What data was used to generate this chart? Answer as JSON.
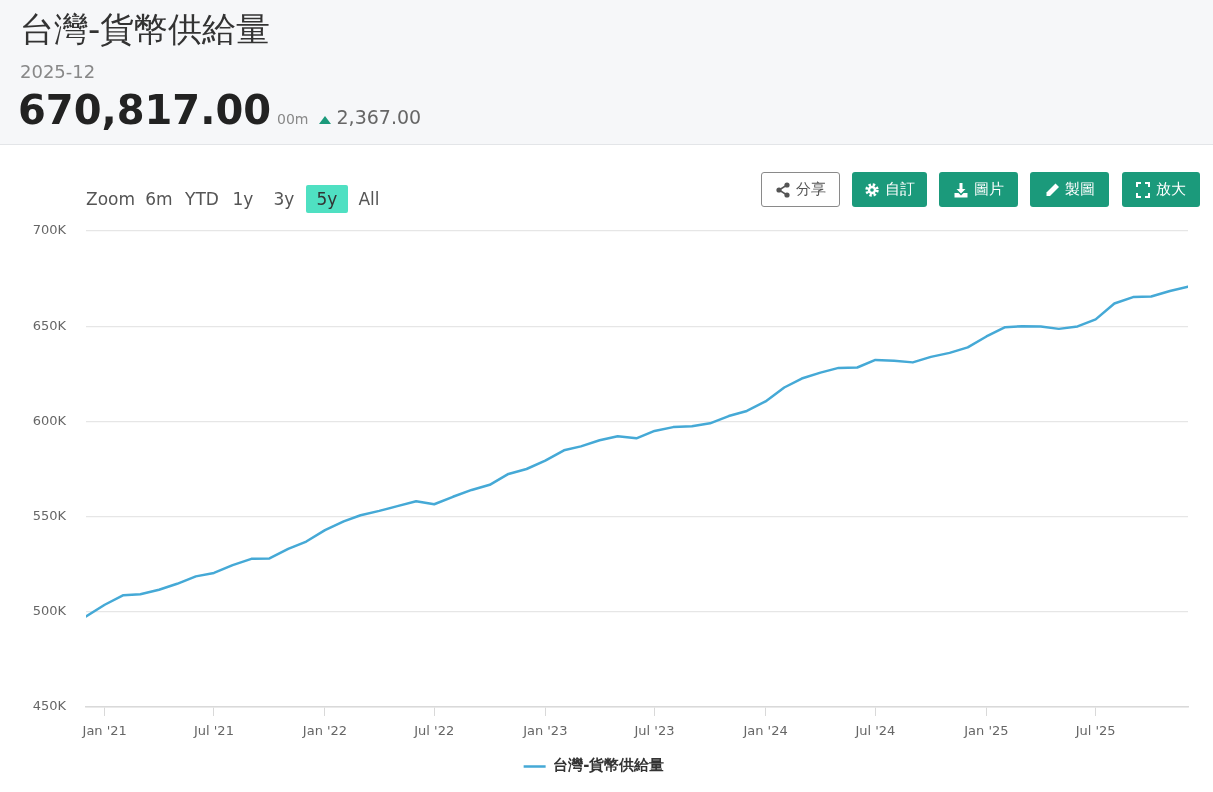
{
  "chart_data": {
    "type": "line",
    "title": "台灣-貨幣供給量",
    "subtitle": "2025-12",
    "annotations": [
      "670,817.00",
      "00m",
      "2,367.00",
      "Zoom",
      "6m",
      "YTD",
      "1y",
      "3y",
      "5y",
      "All",
      "分享",
      "自訂",
      "圖片",
      "製圖",
      "放大"
    ],
    "x": [
      "2020-12",
      "2021-01",
      "2021-02",
      "2021-03",
      "2021-04",
      "2021-05",
      "2021-06",
      "2021-07",
      "2021-08",
      "2021-09",
      "2021-10",
      "2021-11",
      "2021-12",
      "2022-01",
      "2022-02",
      "2022-03",
      "2022-04",
      "2022-05",
      "2022-06",
      "2022-07",
      "2022-08",
      "2022-09",
      "2022-10",
      "2022-11",
      "2022-12",
      "2023-01",
      "2023-02",
      "2023-03",
      "2023-04",
      "2023-05",
      "2023-06",
      "2023-07",
      "2023-08",
      "2023-09",
      "2023-10",
      "2023-11",
      "2023-12",
      "2024-01",
      "2024-02",
      "2024-03",
      "2024-04",
      "2024-05",
      "2024-06",
      "2024-07",
      "2024-08",
      "2024-09",
      "2024-10",
      "2024-11",
      "2024-12",
      "2025-01",
      "2025-02",
      "2025-03",
      "2025-04",
      "2025-05",
      "2025-06",
      "2025-07",
      "2025-08",
      "2025-09",
      "2025-10",
      "2025-11",
      "2025-12"
    ],
    "series": [
      {
        "name": "台灣-貨幣供給量",
        "color": "#45a9d6",
        "values": [
          497500,
          503700,
          508700,
          509200,
          511600,
          514700,
          518600,
          520400,
          524500,
          527800,
          528000,
          533000,
          536900,
          542900,
          547500,
          550700,
          553000,
          555500,
          558100,
          556500,
          560400,
          564000,
          566700,
          572400,
          575000,
          579400,
          584800,
          586900,
          590100,
          592200,
          591100,
          595000,
          597000,
          597400,
          599000,
          602800,
          605500,
          610500,
          617800,
          622500,
          625600,
          628100,
          628300,
          632300,
          631800,
          631000,
          633900,
          636000,
          638900,
          644600,
          649500,
          650000,
          649900,
          648600,
          649900,
          653600,
          661900,
          665300,
          665600,
          668500,
          670800
        ]
      }
    ],
    "xlim": [
      "2020-12",
      "2025-12"
    ],
    "xticks": [
      {
        "value": "2021-01",
        "label": "Jan '21"
      },
      {
        "value": "2021-07",
        "label": "Jul '21"
      },
      {
        "value": "2022-01",
        "label": "Jan '22"
      },
      {
        "value": "2022-07",
        "label": "Jul '22"
      },
      {
        "value": "2023-01",
        "label": "Jan '23"
      },
      {
        "value": "2023-07",
        "label": "Jul '23"
      },
      {
        "value": "2024-01",
        "label": "Jan '24"
      },
      {
        "value": "2024-07",
        "label": "Jul '24"
      },
      {
        "value": "2025-01",
        "label": "Jan '25"
      },
      {
        "value": "2025-07",
        "label": "Jul '25"
      }
    ],
    "ylim": [
      450000,
      700000
    ],
    "yticks": [
      {
        "value": 450000,
        "label": "450K"
      },
      {
        "value": 500000,
        "label": "500K"
      },
      {
        "value": 550000,
        "label": "550K"
      },
      {
        "value": 600000,
        "label": "600K"
      },
      {
        "value": 650000,
        "label": "650K"
      },
      {
        "value": 700000,
        "label": "700K"
      }
    ],
    "grid": "y",
    "legend": "bottom"
  }
}
